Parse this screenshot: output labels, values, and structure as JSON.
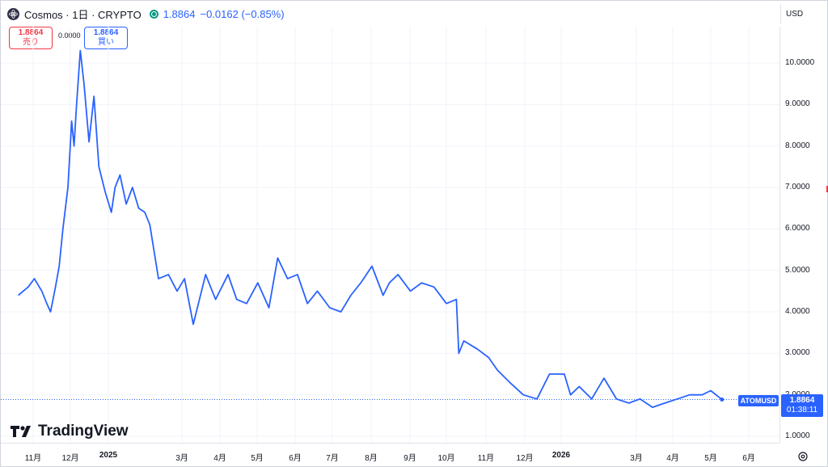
{
  "header": {
    "title": "Cosmos · 1日 · CRYPTO",
    "last_price": "1.8864",
    "change": "−0.0162 (−0.85%)"
  },
  "trade": {
    "sell_price": "1.8864",
    "sell_label": "売り",
    "spread": "0.0000",
    "buy_price": "1.8864",
    "buy_label": "買い"
  },
  "currency": "USD",
  "price_tag": {
    "symbol": "ATOMUSD",
    "price": "1.8864",
    "countdown": "01:38:11"
  },
  "logo_text": "TradingView",
  "colors": {
    "line": "#2962ff",
    "sell": "#f23645",
    "buy": "#2962ff",
    "status": "#089981"
  },
  "icons": [
    "cosmos-coin-icon",
    "market-status-icon",
    "tradingview-logo-icon",
    "settings-icon"
  ],
  "chart_data": {
    "type": "line",
    "series": [
      {
        "name": "ATOMUSD",
        "x": [
          "2024-10-20",
          "2024-10-28",
          "2024-11-02",
          "2024-11-08",
          "2024-11-12",
          "2024-11-15",
          "2024-11-19",
          "2024-11-22",
          "2024-11-25",
          "2024-11-29",
          "2024-12-02",
          "2024-12-04",
          "2024-12-06",
          "2024-12-09",
          "2024-12-12",
          "2024-12-16",
          "2024-12-20",
          "2024-12-24",
          "2024-12-29",
          "2025-01-03",
          "2025-01-06",
          "2025-01-10",
          "2025-01-15",
          "2025-01-20",
          "2025-01-25",
          "2025-01-30",
          "2025-02-03",
          "2025-02-10",
          "2025-02-18",
          "2025-02-25",
          "2025-03-03",
          "2025-03-10",
          "2025-03-20",
          "2025-03-28",
          "2025-04-07",
          "2025-04-14",
          "2025-04-22",
          "2025-05-01",
          "2025-05-10",
          "2025-05-17",
          "2025-05-25",
          "2025-06-02",
          "2025-06-10",
          "2025-06-18",
          "2025-06-28",
          "2025-07-07",
          "2025-07-15",
          "2025-07-23",
          "2025-08-01",
          "2025-08-10",
          "2025-08-15",
          "2025-08-22",
          "2025-09-01",
          "2025-09-10",
          "2025-09-20",
          "2025-09-30",
          "2025-10-08",
          "2025-10-10",
          "2025-10-14",
          "2025-10-25",
          "2025-11-03",
          "2025-11-10",
          "2025-11-20",
          "2025-12-01",
          "2025-12-12",
          "2025-12-22",
          "2026-01-03",
          "2026-01-08",
          "2026-01-15",
          "2026-01-25",
          "2026-02-04",
          "2026-02-14",
          "2026-02-24",
          "2026-03-05",
          "2026-03-15",
          "2026-03-25",
          "2026-04-04",
          "2026-04-14",
          "2026-04-24",
          "2026-05-01",
          "2026-05-10"
        ],
        "y": [
          4.4,
          4.6,
          4.8,
          4.5,
          4.2,
          4.0,
          4.6,
          5.1,
          6.0,
          7.0,
          8.6,
          8.0,
          9.0,
          10.3,
          9.5,
          8.1,
          9.2,
          7.5,
          6.9,
          6.4,
          7.0,
          7.3,
          6.6,
          7.0,
          6.5,
          6.4,
          6.1,
          4.8,
          4.9,
          4.5,
          4.8,
          3.7,
          4.9,
          4.3,
          4.9,
          4.3,
          4.2,
          4.7,
          4.1,
          5.3,
          4.8,
          4.9,
          4.2,
          4.5,
          4.1,
          4.0,
          4.4,
          4.7,
          5.1,
          4.4,
          4.7,
          4.9,
          4.5,
          4.7,
          4.6,
          4.2,
          4.3,
          3.0,
          3.3,
          3.1,
          2.9,
          2.6,
          2.3,
          2.0,
          1.9,
          2.5,
          2.5,
          2.0,
          2.2,
          1.9,
          2.4,
          1.9,
          1.8,
          1.9,
          1.7,
          1.8,
          1.9,
          2.0,
          2.0,
          2.1,
          1.8864
        ]
      }
    ],
    "ylim": [
      0.7,
      10.8
    ],
    "y_ticks": [
      "1.0000",
      "2.0000",
      "3.0000",
      "4.0000",
      "5.0000",
      "6.0000",
      "7.0000",
      "8.0000",
      "9.0000",
      "10.0000"
    ],
    "x_ticks": [
      "11月",
      "12月",
      "2025",
      "3月",
      "4月",
      "5月",
      "6月",
      "7月",
      "8月",
      "9月",
      "10月",
      "11月",
      "12月",
      "2026",
      "3月",
      "4月",
      "5月",
      "6月"
    ],
    "grid": true,
    "legend": "none"
  }
}
